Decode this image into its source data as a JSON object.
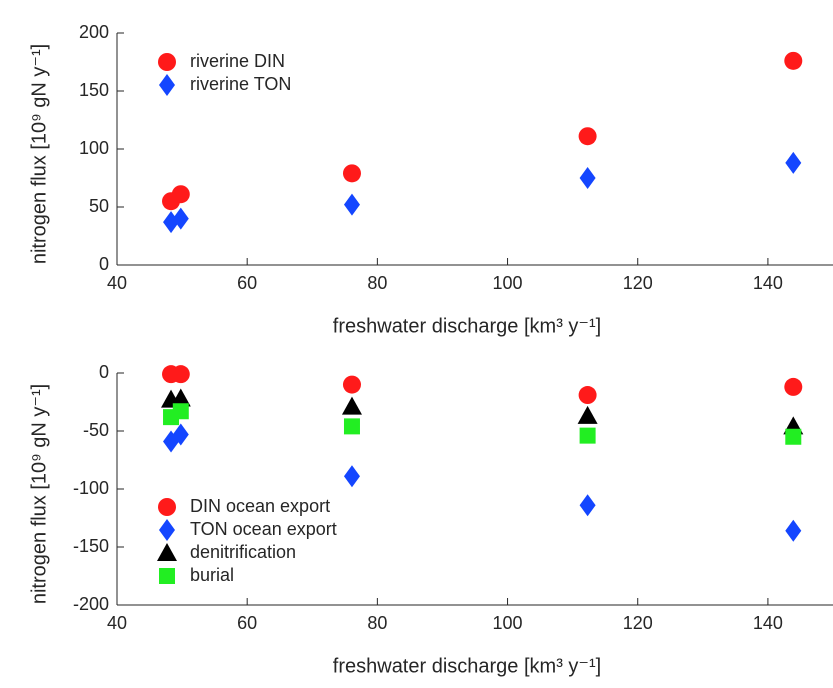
{
  "chart_data": [
    {
      "type": "scatter",
      "x_label": "freshwater discharge [km³ y⁻¹]",
      "y_label": "nitrogen flux [10⁹ gN y⁻¹]",
      "xlim": [
        40,
        150
      ],
      "xticks": [
        40,
        60,
        80,
        100,
        120,
        140
      ],
      "ylim": [
        0,
        200
      ],
      "yticks": [
        0,
        50,
        100,
        150,
        200
      ],
      "legend": "upper left",
      "x": [
        48.3,
        49.8,
        76.1,
        112.3,
        143.9
      ],
      "series": [
        {
          "name": "riverine DIN",
          "color": "#ff1a1a",
          "marker": "circle",
          "values": [
            55,
            61,
            79,
            111,
            176
          ]
        },
        {
          "name": "riverine TON",
          "color": "#1446ff",
          "marker": "diamond",
          "values": [
            37,
            40,
            52,
            75,
            88
          ]
        }
      ]
    },
    {
      "type": "scatter",
      "x_label": "freshwater discharge [km³ y⁻¹]",
      "y_label": "nitrogen flux [10⁹ gN y⁻¹]",
      "xlim": [
        40,
        150
      ],
      "xticks": [
        40,
        60,
        80,
        100,
        120,
        140
      ],
      "ylim": [
        -200,
        0
      ],
      "yticks": [
        -200,
        -150,
        -100,
        -50,
        0
      ],
      "legend": "lower left",
      "x": [
        48.3,
        49.8,
        76.1,
        112.3,
        143.9
      ],
      "series": [
        {
          "name": "DIN ocean export",
          "color": "#ff1a1a",
          "marker": "circle",
          "values": [
            -1,
            -1,
            -10,
            -19,
            -12
          ]
        },
        {
          "name": "TON ocean export",
          "color": "#1446ff",
          "marker": "diamond",
          "values": [
            -59,
            -53,
            -89,
            -114,
            -136
          ]
        },
        {
          "name": "denitrification",
          "color": "#000000",
          "marker": "triangle",
          "values": [
            -23,
            -22,
            -29,
            -37,
            -46
          ]
        },
        {
          "name": "burial",
          "color": "#22ee22",
          "marker": "square",
          "values": [
            -38,
            -33,
            -46,
            -54,
            -55
          ]
        }
      ]
    }
  ]
}
